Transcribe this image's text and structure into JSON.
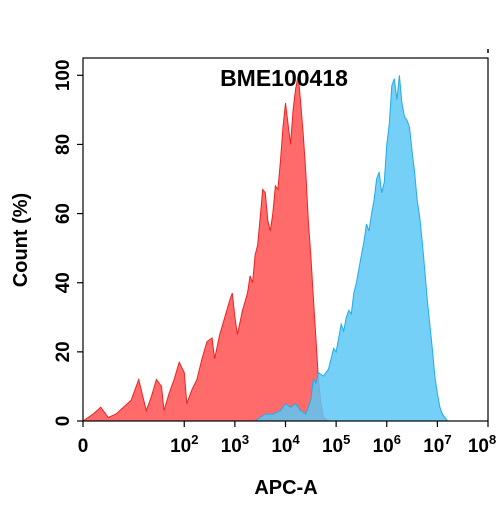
{
  "chart_data": {
    "type": "area",
    "title": "BME100418",
    "xlabel": "APC-A",
    "ylabel": "Count  (%)",
    "x_scale": "biexponential",
    "xlim_log10": [
      0,
      8
    ],
    "ylim": [
      0,
      105
    ],
    "y_ticks": [
      {
        "value": 0,
        "label": "0"
      },
      {
        "value": 20,
        "label": "20"
      },
      {
        "value": 40,
        "label": "40"
      },
      {
        "value": 60,
        "label": "60"
      },
      {
        "value": 80,
        "label": "80"
      },
      {
        "value": 100,
        "label": "100"
      }
    ],
    "x_ticks": [
      {
        "log10": 0,
        "base": "0",
        "exp": ""
      },
      {
        "log10": 2,
        "base": "10",
        "exp": "2"
      },
      {
        "log10": 3,
        "base": "10",
        "exp": "3"
      },
      {
        "log10": 4,
        "base": "10",
        "exp": "4"
      },
      {
        "log10": 5,
        "base": "10",
        "exp": "5"
      },
      {
        "log10": 6,
        "base": "10",
        "exp": "6"
      },
      {
        "log10": 7,
        "base": "10",
        "exp": "7"
      },
      {
        "log10": 8,
        "base": "10",
        "exp": "8"
      }
    ],
    "grid": false,
    "series": [
      {
        "color": "#ff6b6b",
        "stroke": "#ee2222",
        "points": [
          [
            0.0,
            0
          ],
          [
            0.2,
            2
          ],
          [
            0.35,
            4
          ],
          [
            0.5,
            1
          ],
          [
            0.65,
            2
          ],
          [
            0.8,
            4
          ],
          [
            0.95,
            6
          ],
          [
            1.1,
            12
          ],
          [
            1.25,
            3
          ],
          [
            1.35,
            7
          ],
          [
            1.45,
            12
          ],
          [
            1.55,
            10
          ],
          [
            1.6,
            3
          ],
          [
            1.7,
            8
          ],
          [
            1.8,
            12
          ],
          [
            1.9,
            17
          ],
          [
            2.0,
            14
          ],
          [
            2.05,
            5
          ],
          [
            2.15,
            9
          ],
          [
            2.25,
            12
          ],
          [
            2.35,
            18
          ],
          [
            2.45,
            23
          ],
          [
            2.55,
            24
          ],
          [
            2.6,
            18
          ],
          [
            2.7,
            25
          ],
          [
            2.8,
            30
          ],
          [
            2.9,
            35
          ],
          [
            2.95,
            37
          ],
          [
            3.0,
            30
          ],
          [
            3.05,
            25
          ],
          [
            3.15,
            32
          ],
          [
            3.25,
            37
          ],
          [
            3.3,
            42
          ],
          [
            3.35,
            40
          ],
          [
            3.4,
            48
          ],
          [
            3.45,
            51
          ],
          [
            3.5,
            59
          ],
          [
            3.55,
            67
          ],
          [
            3.6,
            66
          ],
          [
            3.65,
            58
          ],
          [
            3.7,
            55
          ],
          [
            3.75,
            60
          ],
          [
            3.8,
            68
          ],
          [
            3.85,
            67
          ],
          [
            3.9,
            75
          ],
          [
            3.95,
            85
          ],
          [
            4.0,
            92
          ],
          [
            4.05,
            86
          ],
          [
            4.1,
            80
          ],
          [
            4.15,
            90
          ],
          [
            4.2,
            96
          ],
          [
            4.25,
            100
          ],
          [
            4.3,
            92
          ],
          [
            4.35,
            83
          ],
          [
            4.4,
            72
          ],
          [
            4.45,
            58
          ],
          [
            4.5,
            48
          ],
          [
            4.55,
            36
          ],
          [
            4.6,
            24
          ],
          [
            4.65,
            12
          ],
          [
            4.7,
            5
          ],
          [
            4.75,
            1
          ],
          [
            4.85,
            0
          ]
        ]
      },
      {
        "color": "#5cc8f5",
        "stroke": "#22aaee",
        "points": [
          [
            3.4,
            0
          ],
          [
            3.5,
            1
          ],
          [
            3.6,
            2
          ],
          [
            3.75,
            2
          ],
          [
            3.9,
            3
          ],
          [
            4.0,
            5
          ],
          [
            4.1,
            4
          ],
          [
            4.2,
            5
          ],
          [
            4.3,
            3
          ],
          [
            4.4,
            2
          ],
          [
            4.5,
            6
          ],
          [
            4.55,
            12
          ],
          [
            4.6,
            11
          ],
          [
            4.65,
            14
          ],
          [
            4.75,
            13
          ],
          [
            4.8,
            14
          ],
          [
            4.85,
            15
          ],
          [
            4.9,
            18
          ],
          [
            4.95,
            21
          ],
          [
            5.0,
            20
          ],
          [
            5.05,
            24
          ],
          [
            5.1,
            28
          ],
          [
            5.15,
            26
          ],
          [
            5.2,
            30
          ],
          [
            5.25,
            32
          ],
          [
            5.3,
            31
          ],
          [
            5.35,
            37
          ],
          [
            5.4,
            40
          ],
          [
            5.45,
            44
          ],
          [
            5.5,
            48
          ],
          [
            5.55,
            52
          ],
          [
            5.6,
            57
          ],
          [
            5.65,
            55
          ],
          [
            5.7,
            60
          ],
          [
            5.75,
            64
          ],
          [
            5.8,
            70
          ],
          [
            5.85,
            72
          ],
          [
            5.9,
            66
          ],
          [
            5.95,
            69
          ],
          [
            6.0,
            80
          ],
          [
            6.05,
            86
          ],
          [
            6.1,
            97
          ],
          [
            6.15,
            99
          ],
          [
            6.2,
            93
          ],
          [
            6.25,
            100
          ],
          [
            6.3,
            92
          ],
          [
            6.35,
            88
          ],
          [
            6.4,
            87
          ],
          [
            6.45,
            85
          ],
          [
            6.5,
            78
          ],
          [
            6.55,
            72
          ],
          [
            6.6,
            64
          ],
          [
            6.65,
            59
          ],
          [
            6.7,
            52
          ],
          [
            6.75,
            44
          ],
          [
            6.8,
            35
          ],
          [
            6.85,
            28
          ],
          [
            6.9,
            21
          ],
          [
            6.95,
            13
          ],
          [
            7.0,
            8
          ],
          [
            7.05,
            4
          ],
          [
            7.1,
            2
          ],
          [
            7.2,
            0
          ]
        ]
      }
    ]
  }
}
